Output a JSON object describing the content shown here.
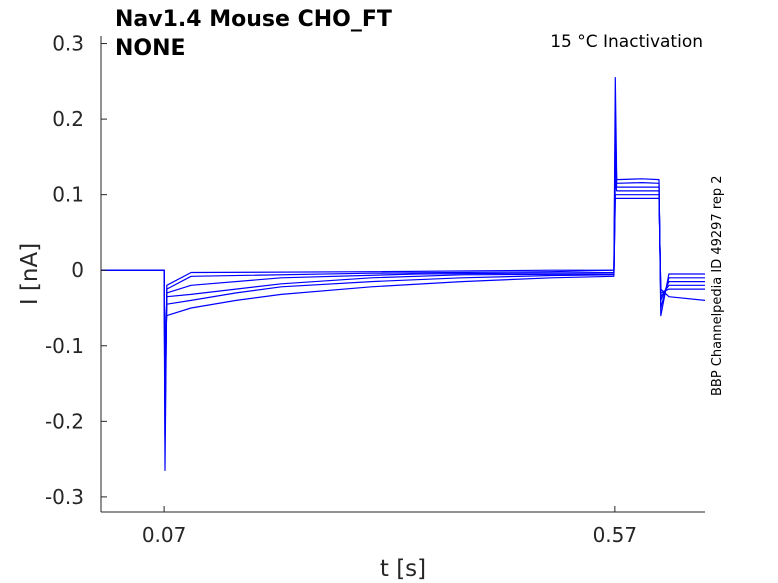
{
  "chart_data": {
    "type": "line",
    "title_line1": "Nav1.4  Mouse  CHO_FT",
    "title_line2": "NONE",
    "annotation": "15 °C  Inactivation",
    "side_label": "BBP Channelpedia ID 49297 rep 2",
    "xlabel": "t [s]",
    "ylabel": "I [nA]",
    "xlim": [
      0.0,
      0.67
    ],
    "ylim": [
      -0.32,
      0.31
    ],
    "x_ticks": [
      0.07,
      0.57
    ],
    "x_tick_labels": [
      "0.07",
      "0.57"
    ],
    "y_ticks": [
      -0.3,
      -0.2,
      -0.1,
      0,
      0.1,
      0.2,
      0.3
    ],
    "y_tick_labels": [
      "-0.3",
      "-0.2",
      "-0.1",
      "0",
      "0.1",
      "0.2",
      "0.3"
    ],
    "grid": false,
    "line_color": "#0000ff",
    "series": [
      {
        "points": [
          [
            0.0,
            0.0
          ],
          [
            0.07,
            0.0
          ],
          [
            0.071,
            -0.265
          ],
          [
            0.073,
            -0.02
          ],
          [
            0.1,
            -0.003
          ],
          [
            0.3,
            -0.002
          ],
          [
            0.5,
            0.0
          ],
          [
            0.569,
            0.0
          ],
          [
            0.5705,
            0.255
          ],
          [
            0.572,
            0.12
          ],
          [
            0.6,
            0.121
          ],
          [
            0.619,
            0.12
          ],
          [
            0.621,
            -0.06
          ],
          [
            0.63,
            -0.005
          ],
          [
            0.67,
            -0.005
          ]
        ]
      },
      {
        "points": [
          [
            0.0,
            0.0
          ],
          [
            0.07,
            0.0
          ],
          [
            0.071,
            -0.22
          ],
          [
            0.073,
            -0.025
          ],
          [
            0.1,
            -0.008
          ],
          [
            0.3,
            -0.004
          ],
          [
            0.5,
            -0.002
          ],
          [
            0.569,
            0.0
          ],
          [
            0.5705,
            0.2
          ],
          [
            0.572,
            0.115
          ],
          [
            0.6,
            0.116
          ],
          [
            0.619,
            0.115
          ],
          [
            0.621,
            -0.05
          ],
          [
            0.63,
            -0.01
          ],
          [
            0.67,
            -0.01
          ]
        ]
      },
      {
        "points": [
          [
            0.0,
            0.0
          ],
          [
            0.07,
            0.0
          ],
          [
            0.071,
            -0.18
          ],
          [
            0.073,
            -0.03
          ],
          [
            0.1,
            -0.02
          ],
          [
            0.2,
            -0.01
          ],
          [
            0.35,
            -0.005
          ],
          [
            0.569,
            -0.003
          ],
          [
            0.5705,
            0.15
          ],
          [
            0.572,
            0.11
          ],
          [
            0.619,
            0.11
          ],
          [
            0.621,
            -0.04
          ],
          [
            0.63,
            -0.015
          ],
          [
            0.67,
            -0.015
          ]
        ]
      },
      {
        "points": [
          [
            0.0,
            0.0
          ],
          [
            0.07,
            0.0
          ],
          [
            0.071,
            -0.15
          ],
          [
            0.073,
            -0.035
          ],
          [
            0.1,
            -0.032
          ],
          [
            0.2,
            -0.018
          ],
          [
            0.3,
            -0.01
          ],
          [
            0.4,
            -0.006
          ],
          [
            0.569,
            -0.005
          ],
          [
            0.5705,
            0.12
          ],
          [
            0.572,
            0.105
          ],
          [
            0.619,
            0.105
          ],
          [
            0.621,
            -0.035
          ],
          [
            0.63,
            -0.02
          ],
          [
            0.67,
            -0.02
          ]
        ]
      },
      {
        "points": [
          [
            0.0,
            0.0
          ],
          [
            0.07,
            0.0
          ],
          [
            0.071,
            -0.12
          ],
          [
            0.073,
            -0.045
          ],
          [
            0.1,
            -0.04
          ],
          [
            0.15,
            -0.03
          ],
          [
            0.2,
            -0.022
          ],
          [
            0.3,
            -0.015
          ],
          [
            0.4,
            -0.01
          ],
          [
            0.5,
            -0.007
          ],
          [
            0.569,
            -0.006
          ],
          [
            0.5705,
            0.1
          ],
          [
            0.572,
            0.1
          ],
          [
            0.619,
            0.1
          ],
          [
            0.621,
            -0.03
          ],
          [
            0.63,
            -0.025
          ],
          [
            0.67,
            -0.025
          ]
        ]
      },
      {
        "points": [
          [
            0.0,
            0.0
          ],
          [
            0.07,
            0.0
          ],
          [
            0.071,
            -0.1
          ],
          [
            0.073,
            -0.06
          ],
          [
            0.1,
            -0.05
          ],
          [
            0.15,
            -0.04
          ],
          [
            0.2,
            -0.032
          ],
          [
            0.3,
            -0.022
          ],
          [
            0.4,
            -0.015
          ],
          [
            0.5,
            -0.01
          ],
          [
            0.569,
            -0.008
          ],
          [
            0.5705,
            0.095
          ],
          [
            0.572,
            0.095
          ],
          [
            0.619,
            0.095
          ],
          [
            0.621,
            -0.025
          ],
          [
            0.63,
            -0.035
          ],
          [
            0.67,
            -0.04
          ]
        ]
      }
    ]
  }
}
